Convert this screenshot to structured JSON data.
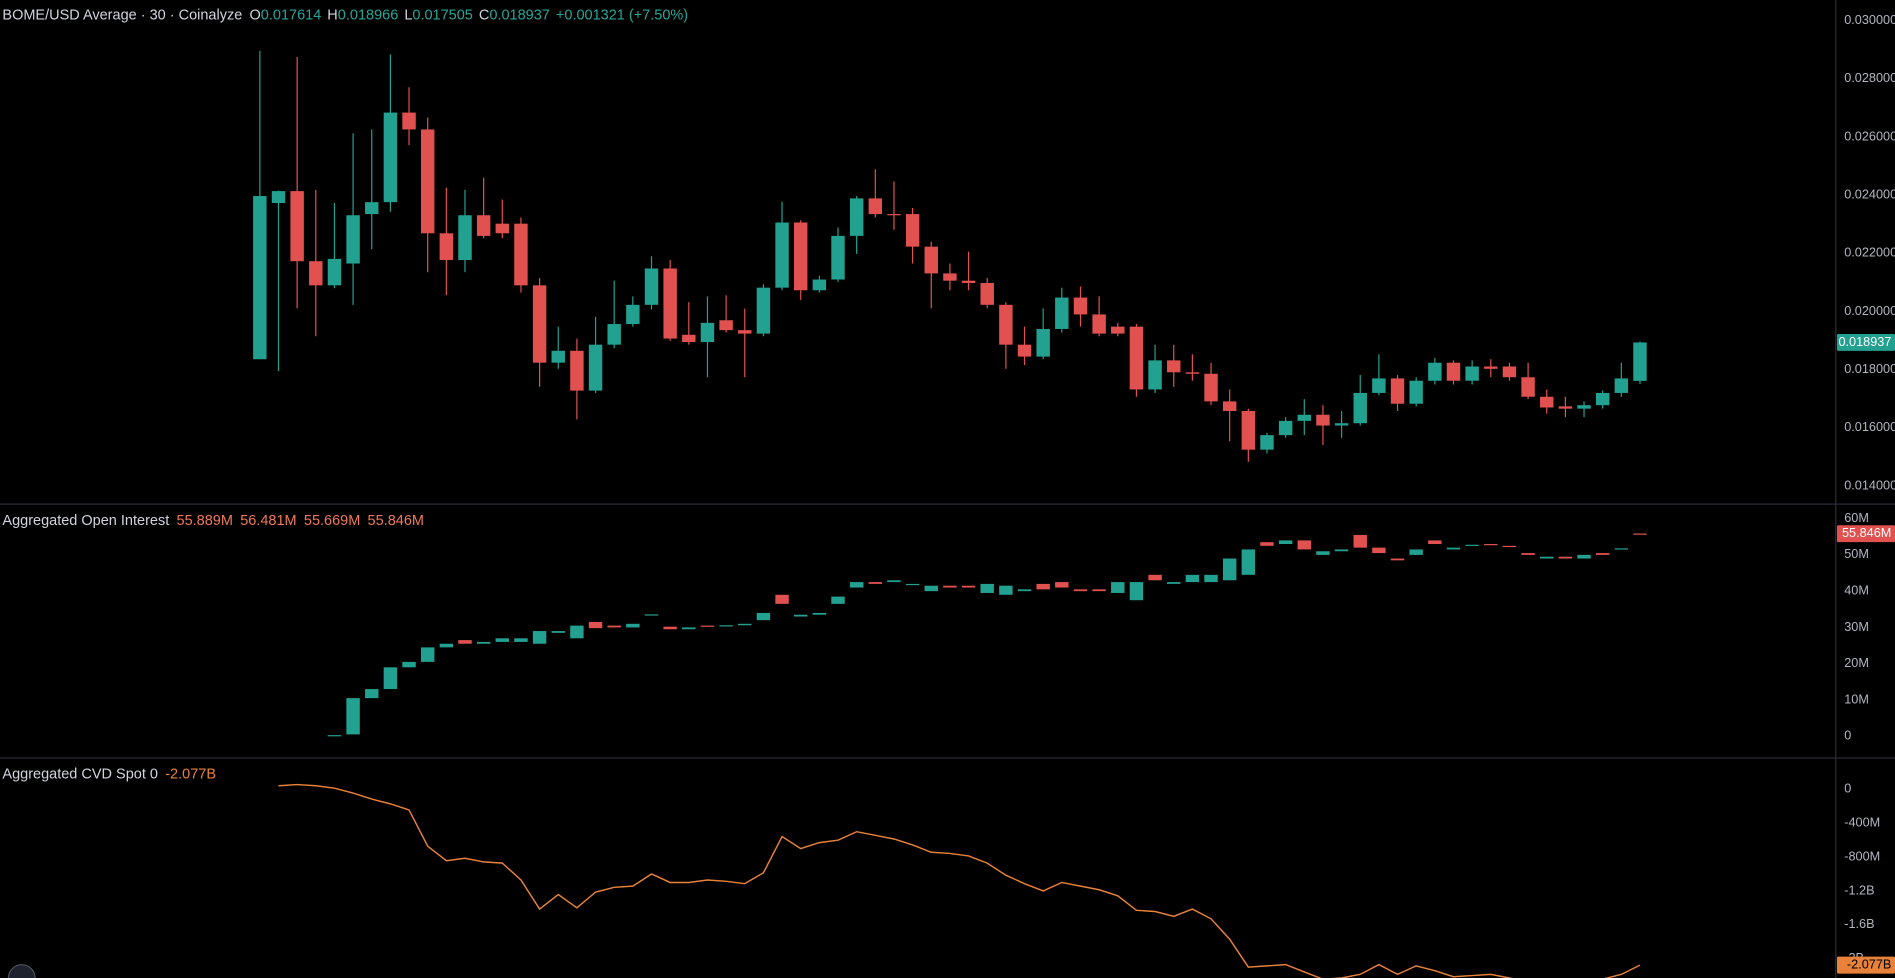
{
  "chart_data": [
    {
      "type": "candlestick",
      "title": "BOME/USD Average · 30 · Coinalyze",
      "legend": [
        {
          "label": "O",
          "value": "0.017614"
        },
        {
          "label": "H",
          "value": "0.018966"
        },
        {
          "label": "L",
          "value": "0.017505"
        },
        {
          "label": "C",
          "value": "0.018937"
        }
      ],
      "change": "+0.001321 (+7.50%)",
      "last_label": "0.018937",
      "up_color": "#22a090",
      "down_color": "#e0514f",
      "grid": false,
      "ylim": [
        0.01342,
        0.03071
      ],
      "yticks": [
        {
          "value": 0.03,
          "label": "0.030000"
        },
        {
          "value": 0.028,
          "label": "0.028000"
        },
        {
          "value": 0.026,
          "label": "0.026000"
        },
        {
          "value": 0.024,
          "label": "0.024000"
        },
        {
          "value": 0.022,
          "label": "0.022000"
        },
        {
          "value": 0.02,
          "label": "0.020000"
        },
        {
          "value": 0.018,
          "label": "0.018000"
        },
        {
          "value": 0.016,
          "label": "0.016000"
        },
        {
          "value": 0.014,
          "label": "0.014000"
        }
      ],
      "open": [
        0.01836,
        0.02373,
        0.02414,
        0.02173,
        0.0209,
        0.02165,
        0.02335,
        0.02376,
        0.02684,
        0.02626,
        0.02269,
        0.02177,
        0.02331,
        0.02302,
        0.02302,
        0.0209,
        0.01824,
        0.01865,
        0.01728,
        0.01886,
        0.01957,
        0.02023,
        0.02148,
        0.0192,
        0.01895,
        0.0197,
        0.01936,
        0.01924,
        0.02082,
        0.02306,
        0.02073,
        0.0211,
        0.0226,
        0.02389,
        0.02335,
        0.02335,
        0.02223,
        0.02131,
        0.02106,
        0.02098,
        0.02023,
        0.01886,
        0.01845,
        0.0194,
        0.02048,
        0.0199,
        0.01948,
        0.01948,
        0.01732,
        0.01832,
        0.01791,
        0.01786,
        0.01691,
        0.01658,
        0.01525,
        0.01575,
        0.01624,
        0.01645,
        0.01608,
        0.01616,
        0.0172,
        0.0177,
        0.01683,
        0.01762,
        0.01824,
        0.01762,
        0.01811,
        0.01811,
        0.01774,
        0.01707,
        0.01674,
        0.01666,
        0.01678,
        0.0172,
        0.017614
      ],
      "high": [
        0.02896,
        0.02416,
        0.02875,
        0.02418,
        0.02373,
        0.02613,
        0.02626,
        0.02884,
        0.02771,
        0.02667,
        0.02426,
        0.02418,
        0.0246,
        0.02385,
        0.02323,
        0.02115,
        0.01948,
        0.01907,
        0.01982,
        0.02106,
        0.02052,
        0.0219,
        0.02177,
        0.02032,
        0.02052,
        0.02056,
        0.0201,
        0.02094,
        0.02377,
        0.02314,
        0.02123,
        0.02289,
        0.02397,
        0.02489,
        0.02447,
        0.02356,
        0.0224,
        0.02165,
        0.02206,
        0.02115,
        0.02032,
        0.01948,
        0.02011,
        0.02082,
        0.02086,
        0.02052,
        0.01961,
        0.01957,
        0.01886,
        0.01886,
        0.01853,
        0.01824,
        0.01732,
        0.01666,
        0.01583,
        0.01637,
        0.01699,
        0.01678,
        0.01658,
        0.01782,
        0.01853,
        0.01782,
        0.01774,
        0.0184,
        0.01832,
        0.01832,
        0.01836,
        0.01824,
        0.01824,
        0.01732,
        0.01707,
        0.01691,
        0.01728,
        0.01824,
        0.018966
      ],
      "low": [
        0.01836,
        0.01795,
        0.02011,
        0.01915,
        0.0208,
        0.02023,
        0.02214,
        0.02343,
        0.02572,
        0.02135,
        0.02056,
        0.02135,
        0.02252,
        0.02252,
        0.02065,
        0.01741,
        0.01803,
        0.01629,
        0.0172,
        0.01874,
        0.01948,
        0.02007,
        0.01899,
        0.01886,
        0.01774,
        0.01928,
        0.01774,
        0.01915,
        0.02073,
        0.0204,
        0.02065,
        0.02102,
        0.02198,
        0.02323,
        0.02281,
        0.02165,
        0.02011,
        0.02073,
        0.02073,
        0.02011,
        0.01803,
        0.01816,
        0.01836,
        0.01928,
        0.01948,
        0.01915,
        0.01915,
        0.01707,
        0.0172,
        0.01741,
        0.01762,
        0.01678,
        0.01554,
        0.01483,
        0.01512,
        0.01566,
        0.01575,
        0.01541,
        0.01566,
        0.01608,
        0.01712,
        0.01658,
        0.01674,
        0.01749,
        0.01749,
        0.01749,
        0.01774,
        0.01762,
        0.01699,
        0.01649,
        0.01637,
        0.01637,
        0.01666,
        0.01707,
        0.017505
      ],
      "close": [
        0.02397,
        0.02414,
        0.02173,
        0.0209,
        0.02181,
        0.02331,
        0.02376,
        0.02684,
        0.02626,
        0.02269,
        0.02177,
        0.02331,
        0.0226,
        0.02269,
        0.0209,
        0.01824,
        0.01865,
        0.01728,
        0.01886,
        0.01957,
        0.02023,
        0.02148,
        0.01907,
        0.01895,
        0.01961,
        0.01936,
        0.01924,
        0.02082,
        0.02306,
        0.02073,
        0.0211,
        0.0226,
        0.02389,
        0.02335,
        0.02331,
        0.02223,
        0.02131,
        0.02106,
        0.02098,
        0.02023,
        0.01886,
        0.01845,
        0.0194,
        0.02048,
        0.0199,
        0.01924,
        0.01924,
        0.01732,
        0.01832,
        0.01791,
        0.01786,
        0.01691,
        0.01658,
        0.01525,
        0.01575,
        0.01624,
        0.01645,
        0.01608,
        0.01616,
        0.0172,
        0.0177,
        0.01683,
        0.01762,
        0.01824,
        0.01762,
        0.01811,
        0.01803,
        0.01774,
        0.01707,
        0.0167,
        0.01666,
        0.01678,
        0.0172,
        0.0177,
        0.018937
      ]
    },
    {
      "type": "candlestick",
      "title": "Aggregated Open Interest",
      "legend": [
        "55.889M",
        "56.481M",
        "55.669M",
        "55.846M"
      ],
      "last_label": "55.846M",
      "up_color": "#22a090",
      "down_color": "#e0514f",
      "grid": false,
      "ylim": [
        -5.67,
        63.67
      ],
      "yticks": [
        {
          "value": 60,
          "label": "60M"
        },
        {
          "value": 50,
          "label": "50M"
        },
        {
          "value": 40,
          "label": "40M"
        },
        {
          "value": 30,
          "label": "30M"
        },
        {
          "value": 20,
          "label": "20M"
        },
        {
          "value": 10,
          "label": "10M"
        },
        0
      ],
      "open": [
        null,
        null,
        null,
        null,
        0,
        0.5,
        10.5,
        13,
        19,
        20.5,
        24.5,
        26.5,
        25.5,
        26,
        26,
        25.5,
        28.5,
        27,
        31.5,
        30.5,
        30,
        33.3,
        30.2,
        29.5,
        30.5,
        30.3,
        30.6,
        32,
        39,
        33,
        33.5,
        36.5,
        41,
        42.5,
        42.5,
        42,
        40,
        41.5,
        41.5,
        39.5,
        39,
        40,
        42,
        42.5,
        40.5,
        40.5,
        39.5,
        37.5,
        44.5,
        42,
        42.5,
        42.5,
        43,
        44.5,
        53.5,
        53,
        54,
        50,
        51,
        55.5,
        52,
        49,
        50,
        54,
        51.5,
        52.5,
        53,
        52.5,
        50.5,
        49,
        49.5,
        49,
        50.5,
        51.5,
        55.889
      ],
      "close": [
        null,
        null,
        null,
        null,
        0.3,
        10.5,
        13,
        19,
        20.5,
        24.5,
        25.5,
        25.5,
        26,
        27,
        27,
        29,
        29,
        30.5,
        29.8,
        30,
        31,
        33.6,
        29.5,
        30,
        30.3,
        30.6,
        31,
        34,
        36.5,
        33.5,
        34,
        38.5,
        42.5,
        42,
        43,
        42,
        41.5,
        41,
        41,
        42,
        41.5,
        40.5,
        40.5,
        41,
        40,
        40,
        42.5,
        42.5,
        43,
        42.5,
        44.5,
        44.5,
        49,
        51.5,
        52.5,
        54,
        51.5,
        51,
        51.5,
        52,
        50.5,
        48.5,
        51.5,
        53,
        52,
        52.8,
        52.8,
        52.3,
        50,
        49.5,
        49,
        50,
        50,
        51.8,
        55.846
      ]
    },
    {
      "type": "line",
      "title": "Aggregated CVD Spot 0",
      "legend": [
        "-2.077B"
      ],
      "last_label": "-2.077B",
      "color": "#e8823a",
      "grid": false,
      "ylim": [
        -2229,
        357
      ],
      "yticks": [
        0,
        {
          "value": -400,
          "label": "-400M"
        },
        {
          "value": -800,
          "label": "-800M"
        },
        {
          "value": -1200,
          "label": "-1.2B"
        },
        {
          "value": -1600,
          "label": "-1.6B"
        },
        {
          "value": -2000,
          "label": "-2B"
        }
      ],
      "values": [
        null,
        43,
        57,
        43,
        14,
        -43,
        -114,
        -171,
        -243,
        -671,
        -843,
        -814,
        -857,
        -871,
        -1071,
        -1414,
        -1243,
        -1400,
        -1214,
        -1157,
        -1143,
        -1000,
        -1100,
        -1100,
        -1071,
        -1086,
        -1114,
        -986,
        -557,
        -700,
        -629,
        -600,
        -500,
        -543,
        -586,
        -657,
        -743,
        -757,
        -786,
        -871,
        -1014,
        -1114,
        -1200,
        -1100,
        -1143,
        -1186,
        -1257,
        -1429,
        -1443,
        -1500,
        -1414,
        -1529,
        -1771,
        -2100,
        -2086,
        -2071,
        -2157,
        -2243,
        -2229,
        -2186,
        -2071,
        -2186,
        -2086,
        -2143,
        -2214,
        -2200,
        -2186,
        -2229,
        -2271,
        -2286,
        -2271,
        -2257,
        -2243,
        -2186,
        -2077
      ]
    }
  ]
}
